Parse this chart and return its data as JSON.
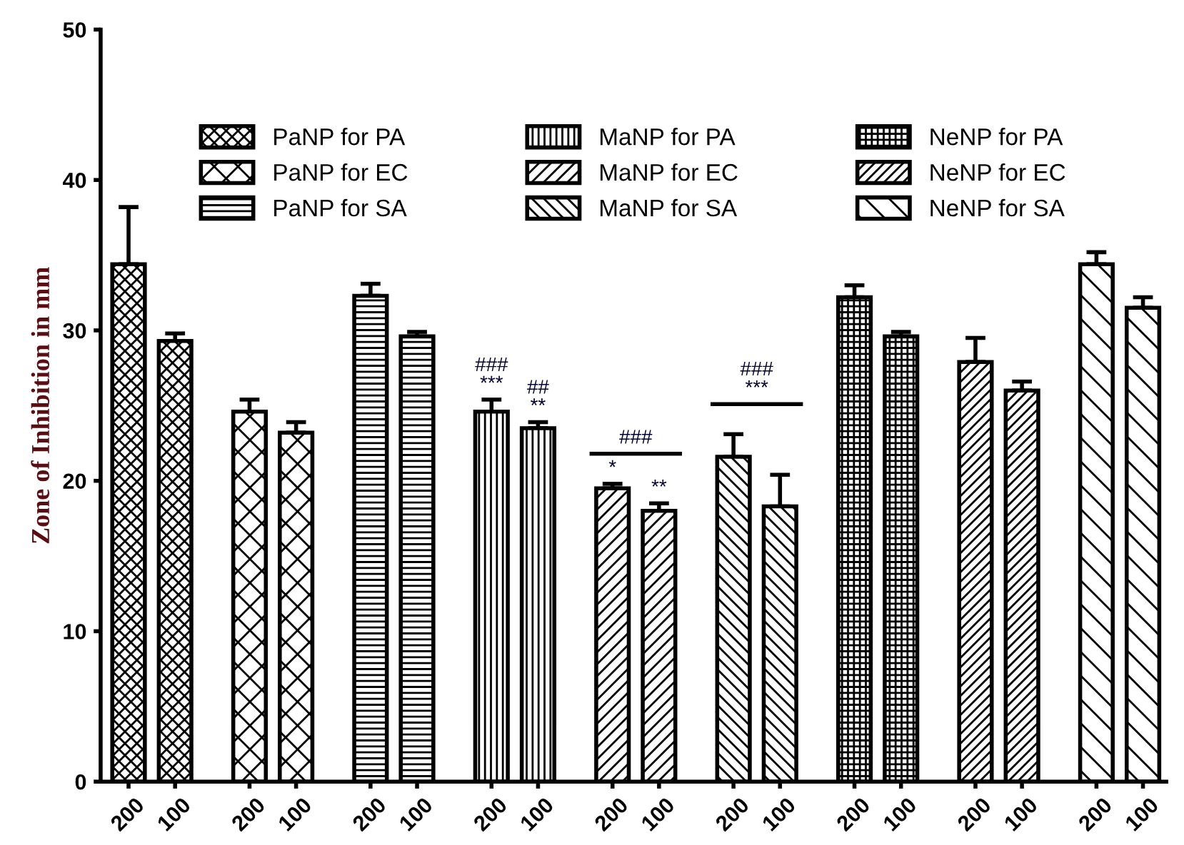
{
  "chart_data": {
    "type": "bar",
    "ylabel": "Zone of Inhibition in mm",
    "categories": [
      "200",
      "100",
      "200",
      "100",
      "200",
      "100",
      "200",
      "100",
      "200",
      "100",
      "200",
      "100",
      "200",
      "100",
      "200",
      "100",
      "200",
      "100"
    ],
    "series": [
      {
        "name": "PaNP for PA",
        "color": "#000000",
        "values": [
          34.4,
          29.3,
          null,
          null,
          null,
          null,
          null,
          null,
          null,
          null,
          null,
          null,
          null,
          null,
          null,
          null,
          null,
          null
        ],
        "errors": [
          3.8,
          0.5,
          null,
          null,
          null,
          null,
          null,
          null,
          null,
          null,
          null,
          null,
          null,
          null,
          null,
          null,
          null,
          null
        ]
      },
      {
        "name": "PaNP for EC",
        "color": "#000000",
        "values": [
          null,
          null,
          24.6,
          23.2,
          null,
          null,
          null,
          null,
          null,
          null,
          null,
          null,
          null,
          null,
          null,
          null,
          null,
          null
        ],
        "errors": [
          null,
          null,
          0.8,
          0.7,
          null,
          null,
          null,
          null,
          null,
          null,
          null,
          null,
          null,
          null,
          null,
          null,
          null,
          null
        ]
      },
      {
        "name": "PaNP for SA",
        "color": "#000000",
        "values": [
          null,
          null,
          null,
          null,
          32.3,
          29.6,
          null,
          null,
          null,
          null,
          null,
          null,
          null,
          null,
          null,
          null,
          null,
          null
        ],
        "errors": [
          null,
          null,
          null,
          null,
          0.8,
          0.3,
          null,
          null,
          null,
          null,
          null,
          null,
          null,
          null,
          null,
          null,
          null,
          null
        ]
      },
      {
        "name": "MaNP for PA",
        "color": "#000000",
        "values": [
          null,
          null,
          null,
          null,
          null,
          null,
          24.6,
          23.5,
          null,
          null,
          null,
          null,
          null,
          null,
          null,
          null,
          null,
          null
        ],
        "value_labels": [
          null,
          null,
          null,
          null,
          null,
          null,
          "###\n***",
          "##\n**",
          null,
          null,
          null,
          null,
          null,
          null,
          null,
          null,
          null,
          null
        ],
        "errors": [
          null,
          null,
          null,
          null,
          null,
          null,
          0.8,
          0.4,
          null,
          null,
          null,
          null,
          null,
          null,
          null,
          null,
          null,
          null
        ]
      },
      {
        "name": "MaNP for EC",
        "color": "#000000",
        "values": [
          null,
          null,
          null,
          null,
          null,
          null,
          null,
          null,
          19.5,
          18.0,
          null,
          null,
          null,
          null,
          null,
          null,
          null,
          null
        ],
        "value_labels": [
          null,
          null,
          null,
          null,
          null,
          null,
          null,
          null,
          "*",
          "**",
          null,
          null,
          null,
          null,
          null,
          null,
          null,
          null
        ],
        "errors": [
          null,
          null,
          null,
          null,
          null,
          null,
          null,
          null,
          0.3,
          0.5,
          null,
          null,
          null,
          null,
          null,
          null,
          null,
          null
        ]
      },
      {
        "name": "MaNP for SA",
        "color": "#000000",
        "values": [
          null,
          null,
          null,
          null,
          null,
          null,
          null,
          null,
          null,
          null,
          21.6,
          18.3,
          null,
          null,
          null,
          null,
          null,
          null
        ],
        "errors": [
          null,
          null,
          null,
          null,
          null,
          null,
          null,
          null,
          null,
          null,
          1.5,
          2.1,
          null,
          null,
          null,
          null,
          null,
          null
        ]
      },
      {
        "name": "NeNP for PA",
        "color": "#000000",
        "values": [
          null,
          null,
          null,
          null,
          null,
          null,
          null,
          null,
          null,
          null,
          null,
          null,
          32.2,
          29.6,
          null,
          null,
          null,
          null
        ],
        "errors": [
          null,
          null,
          null,
          null,
          null,
          null,
          null,
          null,
          null,
          null,
          null,
          null,
          0.8,
          0.3,
          null,
          null,
          null,
          null
        ]
      },
      {
        "name": "NeNP for EC",
        "color": "#000000",
        "values": [
          null,
          null,
          null,
          null,
          null,
          null,
          null,
          null,
          null,
          null,
          null,
          null,
          null,
          null,
          27.9,
          26.0,
          null,
          null
        ],
        "errors": [
          null,
          null,
          null,
          null,
          null,
          null,
          null,
          null,
          null,
          null,
          null,
          null,
          null,
          null,
          1.6,
          0.6,
          null,
          null
        ]
      },
      {
        "name": "NeNP for SA",
        "color": "#000000",
        "values": [
          null,
          null,
          null,
          null,
          null,
          null,
          null,
          null,
          null,
          null,
          null,
          null,
          null,
          null,
          null,
          null,
          34.4,
          31.5
        ],
        "errors": [
          null,
          null,
          null,
          null,
          null,
          null,
          null,
          null,
          null,
          null,
          null,
          null,
          null,
          null,
          null,
          null,
          0.8,
          0.7
        ]
      }
    ],
    "annotations": [
      "###",
      "###\n***"
    ],
    "ylim": [
      0,
      50
    ],
    "yticks": [
      0,
      10,
      20,
      30,
      40,
      50
    ],
    "grid": false,
    "legend": "top"
  }
}
